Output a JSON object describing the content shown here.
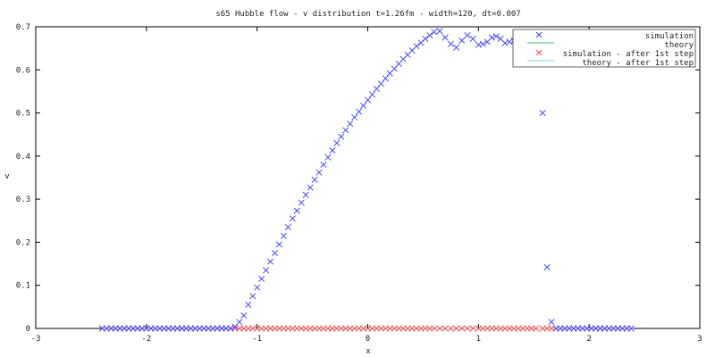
{
  "chart_data": {
    "type": "scatter",
    "title": "s65 Hubble flow - v distribution t=1.26fm - width=120, dt=0.007",
    "xlabel": "x",
    "ylabel": "v",
    "xlim": [
      -3,
      3
    ],
    "ylim": [
      0,
      0.7
    ],
    "xticks": [
      -3,
      -2,
      -1,
      0,
      1,
      2,
      3
    ],
    "yticks": [
      0,
      0.1,
      0.2,
      0.3,
      0.4,
      0.5,
      0.6,
      0.7
    ],
    "xtick_labels": [
      "-3",
      "-2",
      "-1",
      "0",
      "1",
      "2",
      "3"
    ],
    "ytick_labels": [
      "0",
      "0.1",
      "0.2",
      "0.3",
      "0.4",
      "0.5",
      "0.6",
      "0.7"
    ],
    "grid": false,
    "legend_position": "top-right",
    "series": [
      {
        "name": "simulation",
        "marker": "x",
        "color": "#3a3aff",
        "points": [
          [
            -2.4,
            0
          ],
          [
            -2.36,
            0
          ],
          [
            -2.32,
            0
          ],
          [
            -2.28,
            0
          ],
          [
            -2.24,
            0
          ],
          [
            -2.2,
            0
          ],
          [
            -2.16,
            0
          ],
          [
            -2.12,
            0
          ],
          [
            -2.08,
            0
          ],
          [
            -2.04,
            0
          ],
          [
            -2.0,
            0
          ],
          [
            -1.96,
            0
          ],
          [
            -1.92,
            0
          ],
          [
            -1.88,
            0
          ],
          [
            -1.84,
            0
          ],
          [
            -1.8,
            0
          ],
          [
            -1.76,
            0
          ],
          [
            -1.72,
            0
          ],
          [
            -1.68,
            0
          ],
          [
            -1.64,
            0
          ],
          [
            -1.6,
            0
          ],
          [
            -1.56,
            0
          ],
          [
            -1.52,
            0
          ],
          [
            -1.48,
            0
          ],
          [
            -1.44,
            0
          ],
          [
            -1.4,
            0
          ],
          [
            -1.36,
            0
          ],
          [
            -1.32,
            0
          ],
          [
            -1.28,
            0
          ],
          [
            -1.24,
            0
          ],
          [
            -1.2,
            0.004
          ],
          [
            -1.16,
            0.015
          ],
          [
            -1.12,
            0.03
          ],
          [
            -1.08,
            0.055
          ],
          [
            -1.04,
            0.075
          ],
          [
            -1.0,
            0.095
          ],
          [
            -0.96,
            0.115
          ],
          [
            -0.92,
            0.135
          ],
          [
            -0.88,
            0.155
          ],
          [
            -0.84,
            0.175
          ],
          [
            -0.8,
            0.195
          ],
          [
            -0.76,
            0.215
          ],
          [
            -0.72,
            0.235
          ],
          [
            -0.68,
            0.255
          ],
          [
            -0.64,
            0.273
          ],
          [
            -0.6,
            0.292
          ],
          [
            -0.56,
            0.31
          ],
          [
            -0.52,
            0.327
          ],
          [
            -0.48,
            0.345
          ],
          [
            -0.44,
            0.362
          ],
          [
            -0.4,
            0.38
          ],
          [
            -0.36,
            0.397
          ],
          [
            -0.32,
            0.413
          ],
          [
            -0.28,
            0.43
          ],
          [
            -0.24,
            0.445
          ],
          [
            -0.2,
            0.46
          ],
          [
            -0.16,
            0.475
          ],
          [
            -0.12,
            0.49
          ],
          [
            -0.08,
            0.503
          ],
          [
            -0.04,
            0.517
          ],
          [
            0.0,
            0.53
          ],
          [
            0.04,
            0.543
          ],
          [
            0.08,
            0.556
          ],
          [
            0.12,
            0.568
          ],
          [
            0.16,
            0.58
          ],
          [
            0.2,
            0.592
          ],
          [
            0.24,
            0.603
          ],
          [
            0.28,
            0.614
          ],
          [
            0.32,
            0.625
          ],
          [
            0.36,
            0.635
          ],
          [
            0.4,
            0.645
          ],
          [
            0.44,
            0.655
          ],
          [
            0.48,
            0.663
          ],
          [
            0.52,
            0.672
          ],
          [
            0.56,
            0.68
          ],
          [
            0.6,
            0.688
          ],
          [
            0.65,
            0.69
          ],
          [
            0.7,
            0.675
          ],
          [
            0.75,
            0.66
          ],
          [
            0.8,
            0.652
          ],
          [
            0.85,
            0.668
          ],
          [
            0.9,
            0.68
          ],
          [
            0.95,
            0.672
          ],
          [
            1.0,
            0.658
          ],
          [
            1.04,
            0.66
          ],
          [
            1.08,
            0.665
          ],
          [
            1.12,
            0.675
          ],
          [
            1.16,
            0.678
          ],
          [
            1.2,
            0.672
          ],
          [
            1.24,
            0.662
          ],
          [
            1.28,
            0.665
          ],
          [
            1.32,
            0.668
          ],
          [
            1.36,
            0.67
          ],
          [
            1.4,
            0.672
          ],
          [
            1.44,
            0.675
          ],
          [
            1.48,
            0.68
          ],
          [
            1.52,
            0.672
          ],
          [
            1.58,
            0.5
          ],
          [
            1.62,
            0.142
          ],
          [
            1.66,
            0.015
          ],
          [
            1.7,
            0
          ],
          [
            1.74,
            0
          ],
          [
            1.78,
            0
          ],
          [
            1.82,
            0
          ],
          [
            1.86,
            0
          ],
          [
            1.9,
            0
          ],
          [
            1.94,
            0
          ],
          [
            1.98,
            0
          ],
          [
            2.02,
            0
          ],
          [
            2.06,
            0
          ],
          [
            2.1,
            0
          ],
          [
            2.14,
            0
          ],
          [
            2.18,
            0
          ],
          [
            2.22,
            0
          ],
          [
            2.26,
            0
          ],
          [
            2.3,
            0
          ],
          [
            2.34,
            0
          ],
          [
            2.38,
            0
          ]
        ]
      },
      {
        "name": "theory",
        "marker": "line",
        "color": "#3fbf6f",
        "points": []
      },
      {
        "name": "simulation - after 1st step",
        "marker": "x",
        "color": "#ff4040",
        "points": "zeros"
      },
      {
        "name": "theory - after 1st step",
        "marker": "line",
        "color": "#7fd4e8",
        "points": [
          [
            -2.4,
            0
          ],
          [
            2.4,
            0
          ]
        ]
      }
    ]
  }
}
